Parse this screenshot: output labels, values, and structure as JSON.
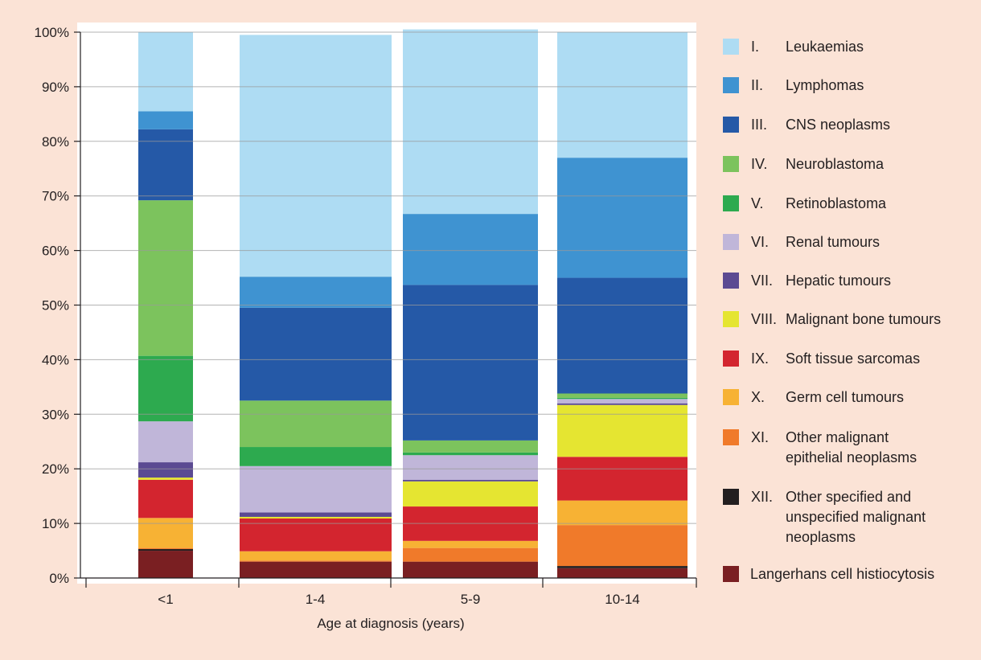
{
  "chart_data": {
    "type": "bar",
    "stacked": true,
    "xlabel": "Age at diagnosis (years)",
    "ylabel": "",
    "ylim": [
      0,
      100
    ],
    "yticks": [
      "0%",
      "10%",
      "20%",
      "30%",
      "40%",
      "50%",
      "60%",
      "70%",
      "80%",
      "90%",
      "100%"
    ],
    "grid": true,
    "legend_position": "right",
    "categories": [
      "<1",
      "1-4",
      "5-9",
      "10-14"
    ],
    "series": [
      {
        "number": "",
        "name": "Langerhans cell histiocytosis",
        "color": "#7a1f22",
        "values": [
          5.0,
          3.0,
          3.0,
          1.8
        ]
      },
      {
        "number": "XII.",
        "name": "Other specified and unspecified malignant neoplasms",
        "color": "#231f20",
        "values": [
          0.3,
          0.0,
          0.0,
          0.4
        ]
      },
      {
        "number": "XI.",
        "name": "Other malignant epithelial neoplasms",
        "color": "#f07a2a",
        "values": [
          0.2,
          0.2,
          2.5,
          7.5
        ]
      },
      {
        "number": "X.",
        "name": "Germ cell tumours",
        "color": "#f7b234",
        "values": [
          5.5,
          1.7,
          1.3,
          4.5
        ]
      },
      {
        "number": "IX.",
        "name": "Soft tissue sarcomas",
        "color": "#d3252f",
        "values": [
          7.0,
          6.0,
          6.3,
          8.0
        ]
      },
      {
        "number": "VIII.",
        "name": "Malignant bone tumours",
        "color": "#e5e531",
        "values": [
          0.4,
          0.3,
          4.6,
          9.5
        ]
      },
      {
        "number": "VII.",
        "name": "Hepatic tumours",
        "color": "#5b4a92",
        "values": [
          2.8,
          0.8,
          0.3,
          0.3
        ]
      },
      {
        "number": "VI.",
        "name": "Renal tumours",
        "color": "#c0b6d9",
        "values": [
          7.5,
          8.5,
          4.5,
          0.8
        ]
      },
      {
        "number": "V.",
        "name": "Retinoblastoma",
        "color": "#2daa4f",
        "values": [
          12.0,
          3.5,
          0.5,
          0.2
        ]
      },
      {
        "number": "IV.",
        "name": "Neuroblastoma",
        "color": "#7cc35d",
        "values": [
          28.5,
          8.5,
          2.2,
          0.8
        ]
      },
      {
        "number": "III.",
        "name": "CNS neoplasms",
        "color": "#2559a7",
        "values": [
          13.0,
          17.0,
          28.5,
          21.2
        ]
      },
      {
        "number": "II.",
        "name": "Lymphomas",
        "color": "#3f93d1",
        "values": [
          3.3,
          5.7,
          13.0,
          22.0
        ]
      },
      {
        "number": "I.",
        "name": "Leukaemias",
        "color": "#aedcf3",
        "values": [
          14.5,
          44.3,
          33.8,
          23.0
        ]
      }
    ],
    "legend_order": [
      {
        "number": "I.",
        "name_lines": [
          "Leukaemias"
        ]
      },
      {
        "number": "II.",
        "name_lines": [
          "Lymphomas"
        ]
      },
      {
        "number": "III.",
        "name_lines": [
          "CNS neoplasms"
        ]
      },
      {
        "number": "IV.",
        "name_lines": [
          "Neuroblastoma"
        ]
      },
      {
        "number": "V.",
        "name_lines": [
          "Retinoblastoma"
        ]
      },
      {
        "number": "VI.",
        "name_lines": [
          "Renal tumours"
        ]
      },
      {
        "number": "VII.",
        "name_lines": [
          "Hepatic tumours"
        ]
      },
      {
        "number": "VIII.",
        "name_lines": [
          "Malignant bone tumours"
        ]
      },
      {
        "number": "IX.",
        "name_lines": [
          "Soft tissue sarcomas"
        ]
      },
      {
        "number": "X.",
        "name_lines": [
          "Germ cell tumours"
        ]
      },
      {
        "number": "XI.",
        "name_lines": [
          "Other malignant",
          "epithelial neoplasms"
        ]
      },
      {
        "number": "XII.",
        "name_lines": [
          "Other specified and",
          "unspecified malignant",
          "neoplasms"
        ]
      },
      {
        "number": "",
        "name_lines": [
          "Langerhans cell histiocytosis"
        ]
      }
    ]
  }
}
